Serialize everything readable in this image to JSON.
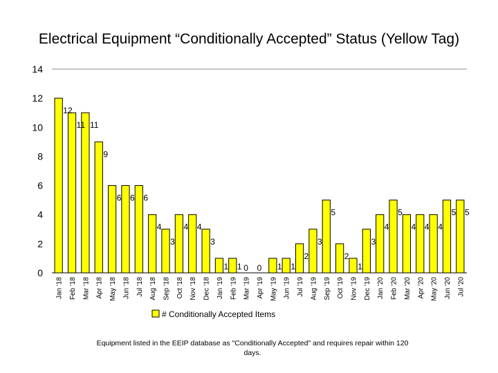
{
  "chart_data": {
    "type": "bar",
    "title": "Electrical Equipment “Conditionally Accepted” Status (Yellow Tag)",
    "footnote": "Equipment listed in the EEIP database as \"Conditionally Accepted\" and requires repair within 120 days.",
    "ylim": [
      0,
      14
    ],
    "yticks": [
      0,
      2,
      4,
      6,
      8,
      10,
      12,
      14
    ],
    "grid": false,
    "legend_position": "bottom",
    "bar_color": "#FFFF00",
    "series": [
      {
        "name": "# Conditionally Accepted Items",
        "values": [
          12,
          11,
          11,
          9,
          6,
          6,
          6,
          4,
          3,
          4,
          4,
          3,
          1,
          1,
          0,
          0,
          1,
          1,
          2,
          3,
          5,
          2,
          1,
          3,
          4,
          5,
          4,
          4,
          4,
          5,
          5
        ]
      }
    ],
    "categories": [
      "Jan '18",
      "Feb '18",
      "Mar '18",
      "Apr '18",
      "May '18",
      "Jun '18",
      "Jul '18",
      "Aug '18",
      "Sep '18",
      "Oct '18",
      "Nov '18",
      "Dec '18",
      "Jan '19",
      "Feb '19",
      "Mar '19",
      "Apr '19",
      "May '19",
      "Jun '19",
      "Jul '19",
      "Aug '19",
      "Sep '19",
      "Oct '19",
      "Nov '19",
      "Dec '19",
      "Jan '20",
      "Feb '20",
      "Mar '20",
      "Apr '20",
      "May '20",
      "Jun '20",
      "Jul '20"
    ]
  }
}
